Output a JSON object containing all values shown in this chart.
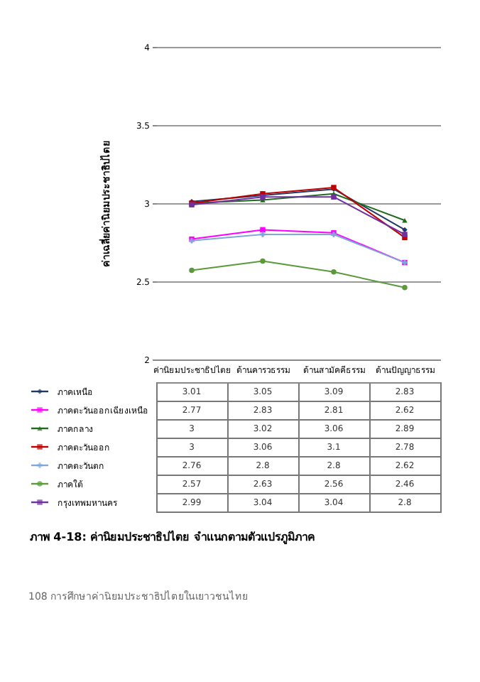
{
  "chart_data": {
    "type": "line",
    "title": "ภาพ 4-18: ค่านิยมประชาธิปไตย จำแนกตามตัวแปรภูมิภาค",
    "ylabel": "ค่าเฉลี่ยค่านิยมประชาธิปไตย",
    "annotations": [
      "108 การศึกษาค่านิยมประชาธิปไตยในเยาวชนไทย"
    ],
    "categories": [
      "ค่านิยมประชาธิปไตย",
      "ด้านคารวธรรม",
      "ด้านสามัคคีธรรม",
      "ด้านปัญญาธรรม"
    ],
    "series": [
      {
        "name": "ภาคเหนือ",
        "color": "#1f3864",
        "marker": "diamond",
        "values": [
          3.01,
          3.05,
          3.09,
          2.83
        ]
      },
      {
        "name": "ภาคตะวันออกเฉียงเหนือ",
        "color": "#ff00ff",
        "marker": "square",
        "values": [
          2.77,
          2.83,
          2.81,
          2.62
        ]
      },
      {
        "name": "ภาคกลาง",
        "color": "#1e6b1e",
        "marker": "triangle",
        "values": [
          3,
          3.02,
          3.06,
          2.89
        ]
      },
      {
        "name": "ภาคตะวันออก",
        "color": "#c00000",
        "marker": "square",
        "values": [
          3,
          3.06,
          3.1,
          2.78
        ]
      },
      {
        "name": "ภาคตะวันตก",
        "color": "#7fa7d8",
        "marker": "cross",
        "values": [
          2.76,
          2.8,
          2.8,
          2.62
        ]
      },
      {
        "name": "ภาคใต้",
        "color": "#5a9a3a",
        "marker": "circle",
        "values": [
          2.57,
          2.63,
          2.56,
          2.46
        ]
      },
      {
        "name": "กรุงเทพมหานคร",
        "color": "#7030a0",
        "marker": "square",
        "values": [
          2.99,
          3.04,
          3.04,
          2.8
        ]
      }
    ],
    "ylim": [
      2,
      4
    ],
    "yticks": [
      2,
      2.5,
      3,
      3.5,
      4
    ],
    "grid": "y",
    "legend": "bottom",
    "data_labels": true
  }
}
